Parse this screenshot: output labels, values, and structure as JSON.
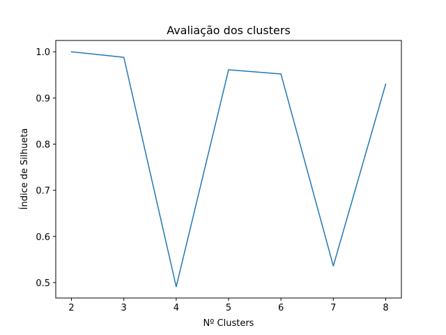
{
  "chart_data": {
    "type": "line",
    "title": "Avaliação dos clusters",
    "xlabel": "Nº Clusters",
    "ylabel": "Índice de Silhueta",
    "x": [
      2,
      3,
      4,
      5,
      6,
      7,
      8
    ],
    "series": [
      {
        "values": [
          1.0,
          0.988,
          0.491,
          0.961,
          0.952,
          0.536,
          0.93
        ],
        "color": "#1f77b4"
      }
    ],
    "xlim": [
      1.7,
      8.3
    ],
    "ylim": [
      0.4666,
      1.0245
    ],
    "xticks": [
      2,
      3,
      4,
      5,
      6,
      7,
      8
    ],
    "yticks": [
      0.5,
      0.6,
      0.7,
      0.8,
      0.9,
      1.0
    ],
    "ytick_labels": [
      "0.5",
      "0.6",
      "0.7",
      "0.8",
      "0.9",
      "1.0"
    ],
    "grid": false,
    "legend": "none"
  }
}
